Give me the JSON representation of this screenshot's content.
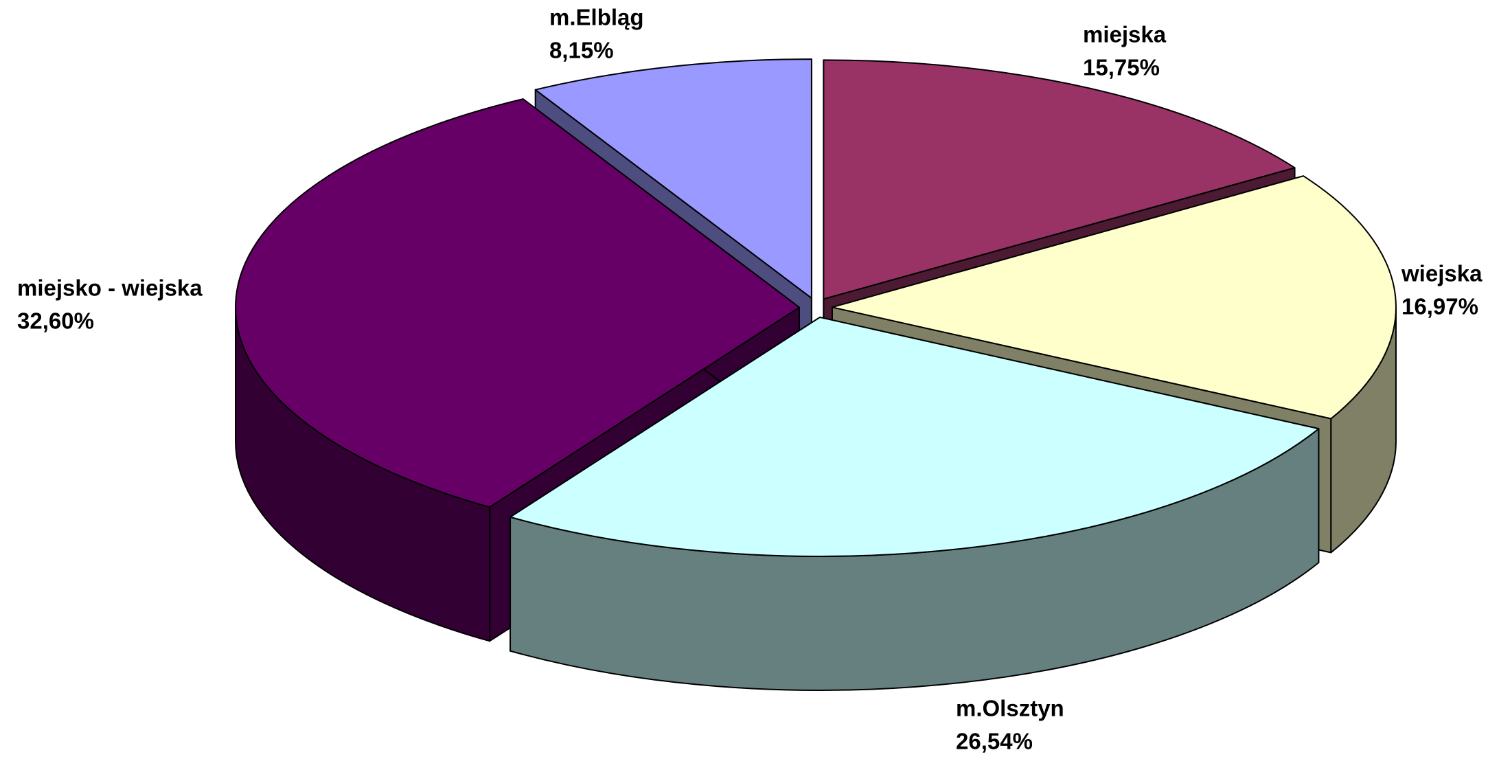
{
  "chart_data": {
    "type": "pie3d",
    "categories": [
      "miejska",
      "wiejska",
      "m.Olsztyn",
      "miejsko - wiejska",
      "m.Elbląg"
    ],
    "values": [
      15.75,
      16.97,
      26.54,
      32.6,
      8.15
    ],
    "value_labels": [
      "15,75%",
      "16,97%",
      "26,54%",
      "32,60%",
      "8,15%"
    ],
    "colors": [
      "#993366",
      "#ffffcc",
      "#ccffff",
      "#660066",
      "#9999ff"
    ]
  }
}
